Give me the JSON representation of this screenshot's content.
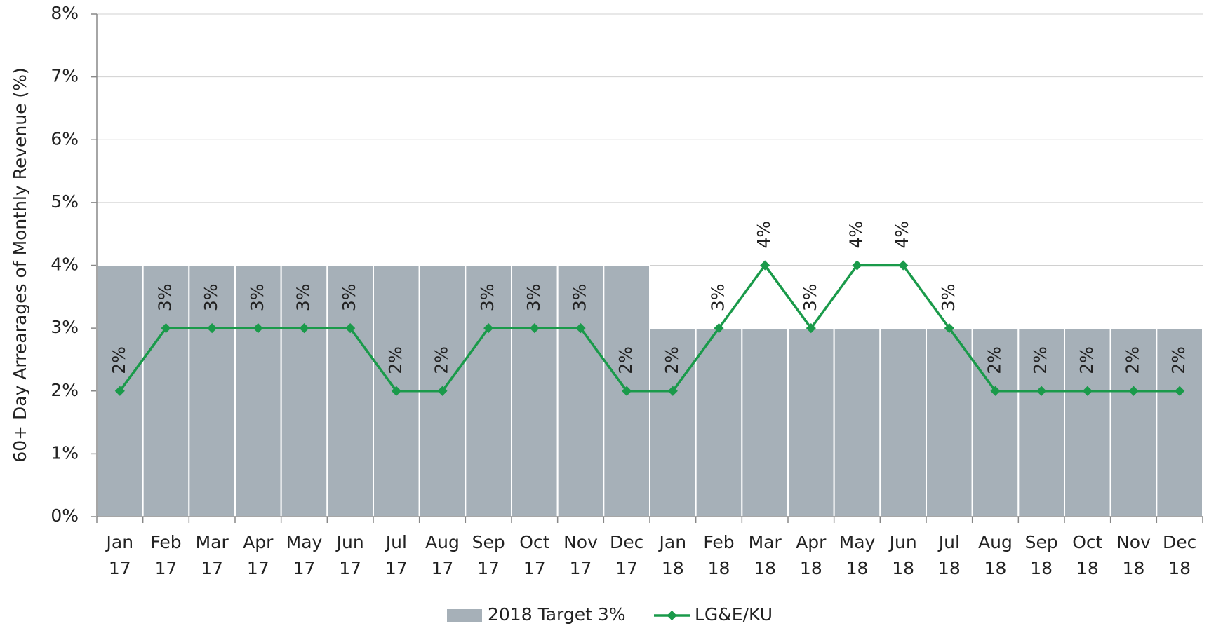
{
  "chart_data": {
    "type": "bar",
    "ylabel": "60+ Day Arrearages of Monthly Revenue (%)",
    "categories": [
      "Jan 17",
      "Feb 17",
      "Mar 17",
      "Apr 17",
      "May 17",
      "Jun 17",
      "Jul 17",
      "Aug 17",
      "Sep 17",
      "Oct 17",
      "Nov 17",
      "Dec 17",
      "Jan 18",
      "Feb 18",
      "Mar 18",
      "Apr 18",
      "May 18",
      "Jun 18",
      "Jul 18",
      "Aug 18",
      "Sep 18",
      "Oct 18",
      "Nov 18",
      "Dec 18"
    ],
    "series": [
      {
        "name": "2018 Target 3%",
        "type": "bar",
        "color": "#a6b0b8",
        "values": [
          4,
          4,
          4,
          4,
          4,
          4,
          4,
          4,
          4,
          4,
          4,
          4,
          3,
          3,
          3,
          3,
          3,
          3,
          3,
          3,
          3,
          3,
          3,
          3
        ]
      },
      {
        "name": "LG&E/KU",
        "type": "line",
        "color": "#1a9a4a",
        "values": [
          2,
          3,
          3,
          3,
          3,
          3,
          2,
          2,
          3,
          3,
          3,
          2,
          2,
          3,
          4,
          3,
          4,
          4,
          3,
          2,
          2,
          2,
          2,
          2
        ],
        "value_labels": [
          "2%",
          "3%",
          "3%",
          "3%",
          "3%",
          "3%",
          "2%",
          "2%",
          "3%",
          "3%",
          "3%",
          "2%",
          "2%",
          "3%",
          "4%",
          "3%",
          "4%",
          "4%",
          "3%",
          "2%",
          "2%",
          "2%",
          "2%",
          "2%"
        ]
      }
    ],
    "ylim": [
      0,
      8
    ],
    "yticks": [
      {
        "value": 0,
        "label": "0%"
      },
      {
        "value": 1,
        "label": "1%"
      },
      {
        "value": 2,
        "label": "2%"
      },
      {
        "value": 3,
        "label": "3%"
      },
      {
        "value": 4,
        "label": "4%"
      },
      {
        "value": 5,
        "label": "5%"
      },
      {
        "value": 6,
        "label": "6%"
      },
      {
        "value": 7,
        "label": "7%"
      },
      {
        "value": 8,
        "label": "8%"
      }
    ],
    "grid": true,
    "legend": "bottom"
  }
}
